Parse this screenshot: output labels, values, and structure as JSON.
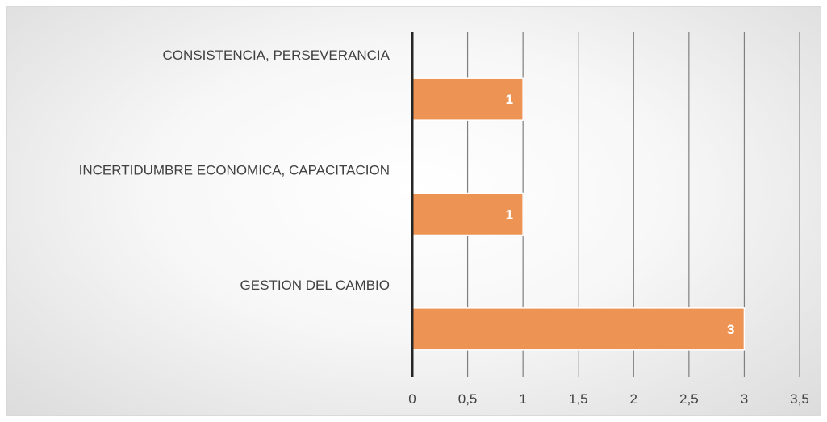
{
  "chart_data": {
    "type": "bar",
    "orientation": "horizontal",
    "categories": [
      "CONSISTENCIA, PERSEVERANCIA",
      "INCERTIDUMBRE ECONOMICA, CAPACITACION",
      "GESTION DEL CAMBIO"
    ],
    "values": [
      1,
      1,
      3
    ],
    "data_labels": [
      "1",
      "1",
      "3"
    ],
    "xlim": [
      0,
      3.5
    ],
    "x_ticks": [
      "0",
      "0,5",
      "1",
      "1,5",
      "2",
      "2,5",
      "3",
      "3,5"
    ],
    "x_tick_values": [
      0,
      0.5,
      1,
      1.5,
      2,
      2.5,
      3,
      3.5
    ],
    "grid": true,
    "legend": "none",
    "bar_color": "#ed9455",
    "bar_border_color": "#ffffff",
    "grid_color": "#7f7f7f",
    "axis_color": "#262626"
  }
}
